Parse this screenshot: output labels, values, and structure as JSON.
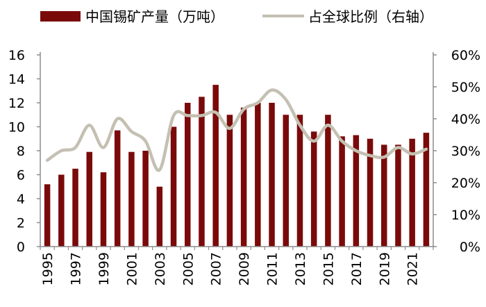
{
  "chart_data": {
    "type": "bar+line",
    "legend": {
      "placement": "top",
      "entries": [
        {
          "label": "中国锡矿产量（万吨）",
          "kind": "bar",
          "color": "#7a0a0a"
        },
        {
          "label": "占全球比例（右轴）",
          "kind": "line",
          "color": "#c4c0b2"
        }
      ]
    },
    "x": [
      1995,
      1996,
      1997,
      1998,
      1999,
      2000,
      2001,
      2002,
      2003,
      2004,
      2005,
      2006,
      2007,
      2008,
      2009,
      2010,
      2011,
      2012,
      2013,
      2014,
      2015,
      2016,
      2017,
      2018,
      2019,
      2020,
      2021,
      2022
    ],
    "x_tick_labels": [
      "1995",
      "1997",
      "1999",
      "2001",
      "2003",
      "2005",
      "2007",
      "2009",
      "2011",
      "2013",
      "2015",
      "2017",
      "2019",
      "2021"
    ],
    "series": [
      {
        "name": "中国锡矿产量（万吨）",
        "kind": "bar",
        "axis": "left",
        "color": "#7a0a0a",
        "values": [
          5.2,
          6.0,
          6.5,
          7.9,
          6.2,
          9.7,
          7.9,
          8.0,
          5.0,
          10.0,
          12.0,
          12.5,
          13.5,
          11.0,
          11.6,
          12.0,
          12.0,
          11.0,
          11.0,
          9.6,
          11.0,
          9.2,
          9.3,
          9.0,
          8.5,
          8.5,
          9.0,
          9.5
        ]
      },
      {
        "name": "占全球比例（右轴）",
        "kind": "line",
        "axis": "right",
        "color": "#c4c0b2",
        "values": [
          0.27,
          0.3,
          0.31,
          0.38,
          0.31,
          0.4,
          0.36,
          0.33,
          0.24,
          0.41,
          0.41,
          0.41,
          0.42,
          0.37,
          0.43,
          0.45,
          0.49,
          0.46,
          0.38,
          0.33,
          0.38,
          0.33,
          0.3,
          0.285,
          0.28,
          0.31,
          0.29,
          0.305
        ]
      }
    ],
    "y_left": {
      "min": 0,
      "max": 16,
      "ticks": [
        0,
        2,
        4,
        6,
        8,
        10,
        12,
        14,
        16
      ],
      "tick_labels": [
        "0",
        "2",
        "4",
        "6",
        "8",
        "10",
        "12",
        "14",
        "16"
      ]
    },
    "y_right": {
      "min": 0,
      "max": 0.6,
      "ticks": [
        0,
        0.1,
        0.2,
        0.3,
        0.4,
        0.5,
        0.6
      ],
      "tick_labels": [
        "0%",
        "10%",
        "20%",
        "30%",
        "40%",
        "50%",
        "60%"
      ]
    },
    "grid": false,
    "colors": {
      "bar": "#7a0a0a",
      "line": "#c4c0b2",
      "axis": "#8c8c8c"
    }
  }
}
